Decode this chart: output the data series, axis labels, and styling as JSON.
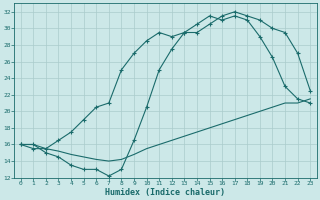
{
  "xlabel": "Humidex (Indice chaleur)",
  "bg_color": "#cce8e8",
  "line_color": "#1a6b6b",
  "grid_color": "#aacccc",
  "ylim": [
    12,
    33
  ],
  "xlim": [
    -0.5,
    23.5
  ],
  "yticks": [
    12,
    14,
    16,
    18,
    20,
    22,
    24,
    26,
    28,
    30,
    32
  ],
  "xticks": [
    0,
    1,
    2,
    3,
    4,
    5,
    6,
    7,
    8,
    9,
    10,
    11,
    12,
    13,
    14,
    15,
    16,
    17,
    18,
    19,
    20,
    21,
    22,
    23
  ],
  "line1_x": [
    0,
    1,
    2,
    3,
    4,
    5,
    6,
    7,
    8,
    9,
    10,
    11,
    12,
    13,
    14,
    15,
    16,
    17,
    18,
    19,
    20,
    21,
    22,
    23
  ],
  "line1_y": [
    16,
    16,
    15.5,
    15.2,
    14.8,
    14.5,
    14.2,
    14.0,
    14.2,
    14.8,
    15.5,
    16.0,
    16.5,
    17.0,
    17.5,
    18.0,
    18.5,
    19.0,
    19.5,
    20.0,
    20.5,
    21.0,
    21.0,
    21.5
  ],
  "line2_x": [
    0,
    1,
    2,
    3,
    4,
    5,
    6,
    7,
    8,
    9,
    10,
    11,
    12,
    13,
    14,
    15,
    16,
    17,
    18,
    19,
    20,
    21,
    22,
    23
  ],
  "line2_y": [
    16,
    16,
    15,
    14.5,
    13.5,
    13.0,
    13.0,
    12.2,
    13.0,
    16.5,
    20.5,
    25,
    27.5,
    29.5,
    29.5,
    30.5,
    31.5,
    32,
    31.5,
    31.0,
    30.0,
    29.5,
    27.0,
    22.5
  ],
  "line3_x": [
    0,
    1,
    2,
    3,
    4,
    5,
    6,
    7,
    8,
    9,
    10,
    11,
    12,
    13,
    14,
    15,
    16,
    17,
    18,
    19,
    20,
    21,
    22,
    23
  ],
  "line3_y": [
    16,
    15.5,
    15.5,
    16.5,
    17.5,
    19.0,
    20.5,
    21.0,
    25.0,
    27.0,
    28.5,
    29.5,
    29.0,
    29.5,
    30.5,
    31.5,
    31.0,
    31.5,
    31.0,
    29.0,
    26.5,
    23.0,
    21.5,
    21.0
  ]
}
